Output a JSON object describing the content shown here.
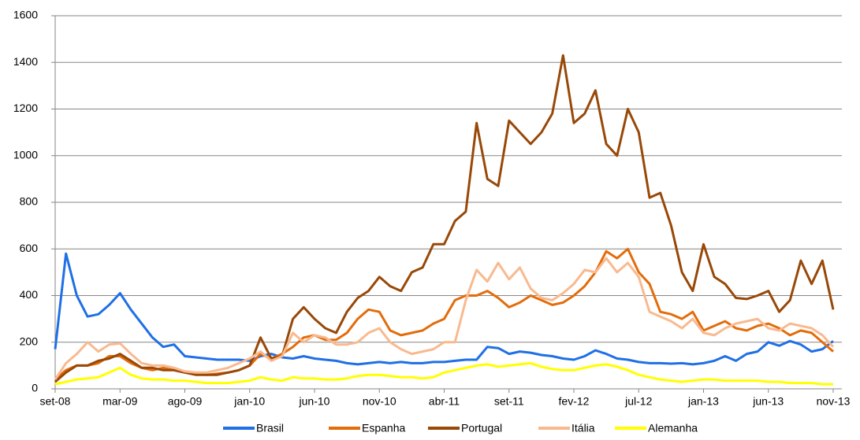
{
  "chart_data": {
    "type": "line",
    "legend": "bottom",
    "grid": true,
    "ylim": [
      0,
      1600
    ],
    "yticks": [
      0,
      200,
      400,
      600,
      800,
      1000,
      1200,
      1400,
      1600
    ],
    "categories": [
      "set-08",
      null,
      null,
      null,
      null,
      null,
      "mar-09",
      null,
      null,
      null,
      null,
      null,
      "ago-09",
      null,
      null,
      null,
      null,
      null,
      "jan-10",
      null,
      null,
      null,
      null,
      null,
      "jun-10",
      null,
      null,
      null,
      null,
      null,
      "nov-10",
      null,
      null,
      null,
      null,
      null,
      "abr-11",
      null,
      null,
      null,
      null,
      null,
      "set-11",
      null,
      null,
      null,
      null,
      null,
      "fev-12",
      null,
      null,
      null,
      null,
      null,
      "jul-12",
      null,
      null,
      null,
      null,
      null,
      "jan-13",
      null,
      null,
      null,
      null,
      null,
      "jun-13",
      null,
      null,
      null,
      null,
      null,
      "nov-13"
    ],
    "series": [
      {
        "name": "Brasil",
        "color": "#1f6fe6",
        "values": [
          170,
          580,
          400,
          310,
          320,
          360,
          410,
          340,
          280,
          220,
          180,
          190,
          140,
          135,
          130,
          125,
          125,
          125,
          120,
          140,
          150,
          135,
          130,
          140,
          130,
          125,
          120,
          110,
          105,
          110,
          115,
          110,
          115,
          110,
          110,
          115,
          115,
          120,
          125,
          125,
          180,
          175,
          150,
          160,
          155,
          145,
          140,
          130,
          125,
          140,
          165,
          150,
          130,
          125,
          115,
          110,
          110,
          108,
          110,
          105,
          110,
          120,
          140,
          120,
          150,
          160,
          200,
          185,
          205,
          190,
          160,
          170,
          205
        ]
      },
      {
        "name": "Espanha",
        "color": "#e36c0a",
        "values": [
          40,
          80,
          100,
          100,
          110,
          140,
          140,
          110,
          90,
          80,
          90,
          80,
          70,
          65,
          60,
          65,
          70,
          80,
          100,
          150,
          130,
          150,
          180,
          220,
          230,
          210,
          210,
          240,
          300,
          340,
          330,
          250,
          230,
          240,
          250,
          280,
          300,
          380,
          400,
          400,
          420,
          390,
          350,
          370,
          400,
          380,
          360,
          370,
          400,
          440,
          500,
          590,
          560,
          600,
          500,
          450,
          330,
          320,
          300,
          330,
          250,
          270,
          290,
          260,
          250,
          270,
          280,
          260,
          230,
          250,
          240,
          200,
          160
        ]
      },
      {
        "name": "Portugal",
        "color": "#984807",
        "values": [
          30,
          70,
          100,
          100,
          120,
          130,
          150,
          120,
          90,
          90,
          80,
          80,
          70,
          60,
          60,
          60,
          70,
          80,
          100,
          220,
          130,
          140,
          300,
          350,
          300,
          260,
          240,
          330,
          390,
          420,
          480,
          440,
          420,
          500,
          520,
          620,
          620,
          720,
          760,
          1140,
          900,
          870,
          1150,
          1100,
          1050,
          1100,
          1180,
          1430,
          1140,
          1180,
          1280,
          1050,
          1000,
          1200,
          1100,
          820,
          840,
          700,
          500,
          420,
          620,
          480,
          450,
          390,
          385,
          400,
          420,
          330,
          380,
          550,
          450,
          550,
          340
        ]
      },
      {
        "name": "Itália",
        "color": "#f9b98f",
        "values": [
          40,
          110,
          150,
          200,
          160,
          190,
          195,
          150,
          110,
          100,
          100,
          90,
          75,
          70,
          70,
          80,
          90,
          110,
          130,
          160,
          120,
          140,
          240,
          200,
          230,
          220,
          190,
          190,
          200,
          240,
          260,
          200,
          170,
          150,
          160,
          170,
          200,
          200,
          380,
          510,
          460,
          540,
          470,
          520,
          430,
          390,
          380,
          410,
          450,
          510,
          500,
          560,
          500,
          540,
          480,
          330,
          310,
          290,
          260,
          300,
          240,
          230,
          260,
          280,
          290,
          300,
          260,
          250,
          280,
          270,
          260,
          230,
          180
        ]
      },
      {
        "name": "Alemanha",
        "color": "#ffff00",
        "values": [
          20,
          30,
          40,
          45,
          50,
          70,
          90,
          60,
          45,
          40,
          40,
          35,
          35,
          30,
          25,
          25,
          25,
          30,
          35,
          50,
          40,
          35,
          50,
          45,
          45,
          40,
          40,
          45,
          55,
          60,
          60,
          55,
          50,
          50,
          45,
          50,
          70,
          80,
          90,
          100,
          105,
          95,
          100,
          105,
          110,
          95,
          85,
          80,
          80,
          90,
          100,
          105,
          95,
          80,
          60,
          50,
          40,
          35,
          30,
          35,
          40,
          40,
          35,
          35,
          35,
          35,
          30,
          30,
          25,
          25,
          25,
          20,
          20
        ]
      }
    ]
  }
}
